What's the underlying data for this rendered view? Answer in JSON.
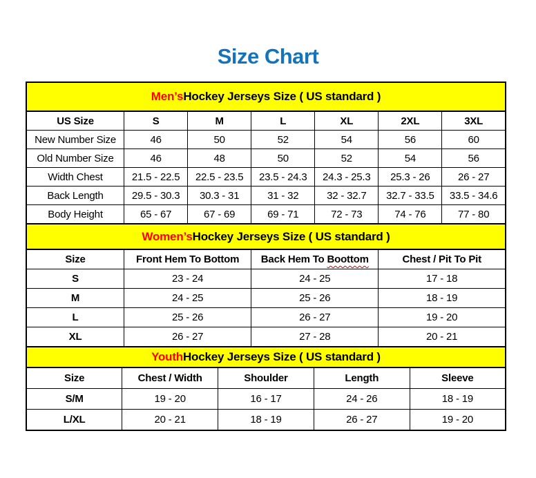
{
  "page": {
    "title": "Size Chart"
  },
  "colors": {
    "title_blue": "#1473BB",
    "band_yellow": "#FFFF00",
    "accent_red": "#FF0000",
    "border_black": "#000000",
    "text_black": "#000000",
    "squiggle_red": "#C00000"
  },
  "spellcheck": {
    "word": "Boottom",
    "style": "red-wavy-underline"
  },
  "sections": [
    {
      "id": "mens",
      "heading": {
        "accent": "Men’s",
        "rest": " Hockey Jerseys Size ( US standard )"
      },
      "columns": [
        "US Size",
        "S",
        "M",
        "L",
        "XL",
        "2XL",
        "3XL"
      ],
      "rows": [
        [
          "New Number Size",
          "46",
          "50",
          "52",
          "54",
          "56",
          "60"
        ],
        [
          "Old Number Size",
          "46",
          "48",
          "50",
          "52",
          "54",
          "56"
        ],
        [
          "Width Chest",
          "21.5 - 22.5",
          "22.5 - 23.5",
          "23.5 - 24.3",
          "24.3 - 25.3",
          "25.3 - 26",
          "26 - 27"
        ],
        [
          "Back Length",
          "29.5 - 30.3",
          "30.3 - 31",
          "31 - 32",
          "32 - 32.7",
          "32.7 - 33.5",
          "33.5 - 34.6"
        ],
        [
          "Body Height",
          "65 - 67",
          "67 - 69",
          "69 - 71",
          "72 - 73",
          "74 - 76",
          "77 - 80"
        ]
      ]
    },
    {
      "id": "womens",
      "heading": {
        "accent": "Women’s",
        "rest": " Hockey Jerseys Size ( US standard )"
      },
      "columns": [
        "Size",
        "Front Hem To Bottom",
        "Back Hem To Boottom",
        "Chest / Pit To Pit"
      ],
      "rows": [
        [
          "S",
          "23 - 24",
          "24 - 25",
          "17 - 18"
        ],
        [
          "M",
          "24 - 25",
          "25 - 26",
          "18 - 19"
        ],
        [
          "L",
          "25 - 26",
          "26 - 27",
          "19 - 20"
        ],
        [
          "XL",
          "26 - 27",
          "27 - 28",
          "20 - 21"
        ]
      ]
    },
    {
      "id": "youth",
      "heading": {
        "accent": "Youth",
        "rest": " Hockey Jerseys Size ( US standard )"
      },
      "columns": [
        "Size",
        "Chest / Width",
        "Shoulder",
        "Length",
        "Sleeve"
      ],
      "rows": [
        [
          "S/M",
          "19 - 20",
          "16 - 17",
          "24 - 26",
          "18 - 19"
        ],
        [
          "L/XL",
          "20 - 21",
          "18 - 19",
          "26 - 27",
          "19 - 20"
        ]
      ]
    }
  ]
}
